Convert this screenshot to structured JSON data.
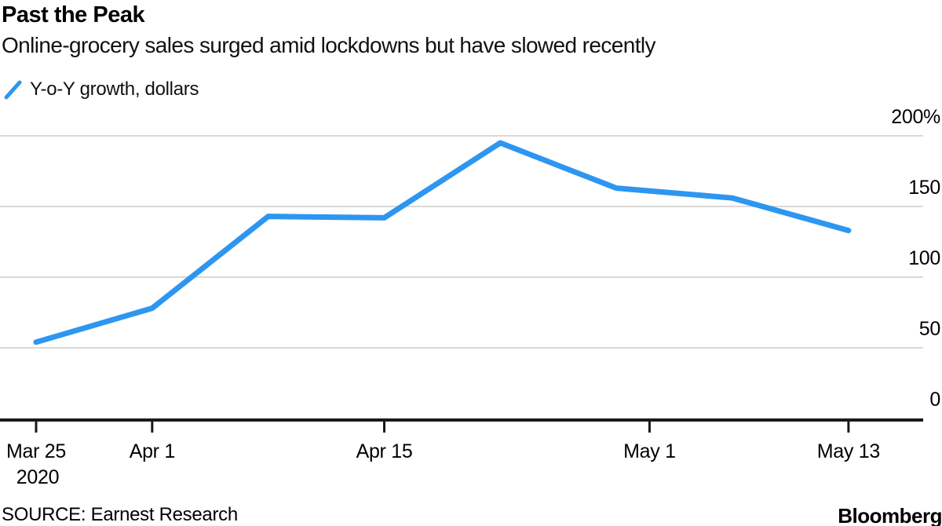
{
  "header": {
    "title": "Past the Peak",
    "subtitle": "Online-grocery sales surged amid lockdowns but have slowed recently"
  },
  "legend": {
    "label": "Y-o-Y growth, dollars",
    "color": "#2d96f0"
  },
  "footer": {
    "source": "SOURCE: Earnest Research",
    "brand": "Bloomberg"
  },
  "chart_data": {
    "type": "line",
    "title": "Past the Peak",
    "subtitle": "Online-grocery sales surged amid lockdowns but have slowed recently",
    "ylabel": "Y-o-Y growth, dollars (%)",
    "xlabel": "",
    "ylim": [
      0,
      200
    ],
    "grid": "horizontal",
    "legend_position": "top-left",
    "series": [
      {
        "name": "Y-o-Y growth, dollars",
        "x_dates": [
          "Mar 25 2020",
          "Apr 1 2020",
          "Apr 8 2020",
          "Apr 15 2020",
          "Apr 22 2020",
          "Apr 29 2020",
          "May 6 2020",
          "May 13 2020"
        ],
        "x_days": [
          0,
          7,
          14,
          21,
          28,
          35,
          42,
          49
        ],
        "values": [
          54,
          78,
          143,
          142,
          195,
          163,
          156,
          133
        ]
      }
    ],
    "y_ticks": [
      {
        "value": 200,
        "label": "200%"
      },
      {
        "value": 150,
        "label": "150"
      },
      {
        "value": 100,
        "label": "100"
      },
      {
        "value": 50,
        "label": "50"
      },
      {
        "value": 0,
        "label": "0"
      }
    ],
    "x_ticks": [
      {
        "day": 0,
        "label": "Mar 25",
        "sublabel": "2020"
      },
      {
        "day": 7,
        "label": "Apr 1"
      },
      {
        "day": 21,
        "label": "Apr 15"
      },
      {
        "day": 37,
        "label": "May 1"
      },
      {
        "day": 49,
        "label": "May 13"
      }
    ],
    "colors": {
      "line": "#2d96f0",
      "grid": "#d9d9d9",
      "axis": "#1a1a1a",
      "text": "#000000"
    }
  }
}
